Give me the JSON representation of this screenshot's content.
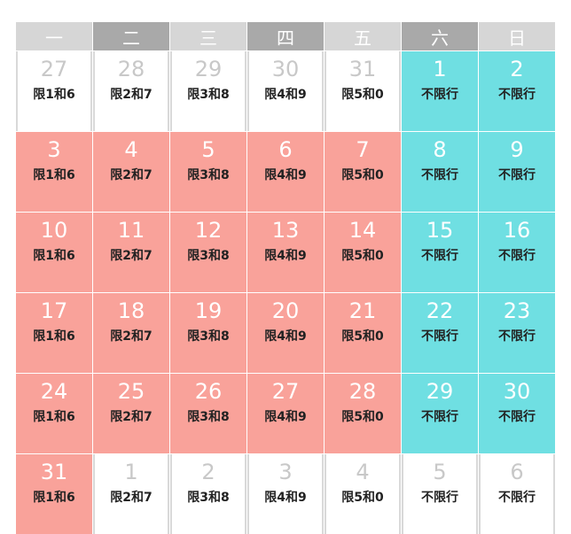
{
  "calendar": {
    "weekdays": [
      {
        "label": "一",
        "color": "#d6d6d6"
      },
      {
        "label": "二",
        "color": "#a9a9a9"
      },
      {
        "label": "三",
        "color": "#d6d6d6"
      },
      {
        "label": "四",
        "color": "#a9a9a9"
      },
      {
        "label": "五",
        "color": "#d6d6d6"
      },
      {
        "label": "六",
        "color": "#a9a9a9"
      },
      {
        "label": "日",
        "color": "#d6d6d6"
      }
    ],
    "colors": {
      "restricted": "#f9a29a",
      "free": "#6fdfe2",
      "other_month_text": "#c8c8c8"
    },
    "weeks": [
      [
        {
          "day": "27",
          "rule": "限1和6",
          "type": "other"
        },
        {
          "day": "28",
          "rule": "限2和7",
          "type": "other"
        },
        {
          "day": "29",
          "rule": "限3和8",
          "type": "other"
        },
        {
          "day": "30",
          "rule": "限4和9",
          "type": "other"
        },
        {
          "day": "31",
          "rule": "限5和0",
          "type": "other"
        },
        {
          "day": "1",
          "rule": "不限行",
          "type": "free"
        },
        {
          "day": "2",
          "rule": "不限行",
          "type": "free"
        }
      ],
      [
        {
          "day": "3",
          "rule": "限1和6",
          "type": "restricted"
        },
        {
          "day": "4",
          "rule": "限2和7",
          "type": "restricted"
        },
        {
          "day": "5",
          "rule": "限3和8",
          "type": "restricted"
        },
        {
          "day": "6",
          "rule": "限4和9",
          "type": "restricted"
        },
        {
          "day": "7",
          "rule": "限5和0",
          "type": "restricted"
        },
        {
          "day": "8",
          "rule": "不限行",
          "type": "free"
        },
        {
          "day": "9",
          "rule": "不限行",
          "type": "free"
        }
      ],
      [
        {
          "day": "10",
          "rule": "限1和6",
          "type": "restricted"
        },
        {
          "day": "11",
          "rule": "限2和7",
          "type": "restricted"
        },
        {
          "day": "12",
          "rule": "限3和8",
          "type": "restricted"
        },
        {
          "day": "13",
          "rule": "限4和9",
          "type": "restricted"
        },
        {
          "day": "14",
          "rule": "限5和0",
          "type": "restricted"
        },
        {
          "day": "15",
          "rule": "不限行",
          "type": "free"
        },
        {
          "day": "16",
          "rule": "不限行",
          "type": "free"
        }
      ],
      [
        {
          "day": "17",
          "rule": "限1和6",
          "type": "restricted"
        },
        {
          "day": "18",
          "rule": "限2和7",
          "type": "restricted"
        },
        {
          "day": "19",
          "rule": "限3和8",
          "type": "restricted"
        },
        {
          "day": "20",
          "rule": "限4和9",
          "type": "restricted"
        },
        {
          "day": "21",
          "rule": "限5和0",
          "type": "restricted"
        },
        {
          "day": "22",
          "rule": "不限行",
          "type": "free"
        },
        {
          "day": "23",
          "rule": "不限行",
          "type": "free"
        }
      ],
      [
        {
          "day": "24",
          "rule": "限1和6",
          "type": "restricted"
        },
        {
          "day": "25",
          "rule": "限2和7",
          "type": "restricted"
        },
        {
          "day": "26",
          "rule": "限3和8",
          "type": "restricted"
        },
        {
          "day": "27",
          "rule": "限4和9",
          "type": "restricted"
        },
        {
          "day": "28",
          "rule": "限5和0",
          "type": "restricted"
        },
        {
          "day": "29",
          "rule": "不限行",
          "type": "free"
        },
        {
          "day": "30",
          "rule": "不限行",
          "type": "free"
        }
      ],
      [
        {
          "day": "31",
          "rule": "限1和6",
          "type": "restricted"
        },
        {
          "day": "1",
          "rule": "限2和7",
          "type": "other"
        },
        {
          "day": "2",
          "rule": "限3和8",
          "type": "other"
        },
        {
          "day": "3",
          "rule": "限4和9",
          "type": "other"
        },
        {
          "day": "4",
          "rule": "限5和0",
          "type": "other"
        },
        {
          "day": "5",
          "rule": "不限行",
          "type": "other"
        },
        {
          "day": "6",
          "rule": "不限行",
          "type": "other"
        }
      ]
    ]
  }
}
